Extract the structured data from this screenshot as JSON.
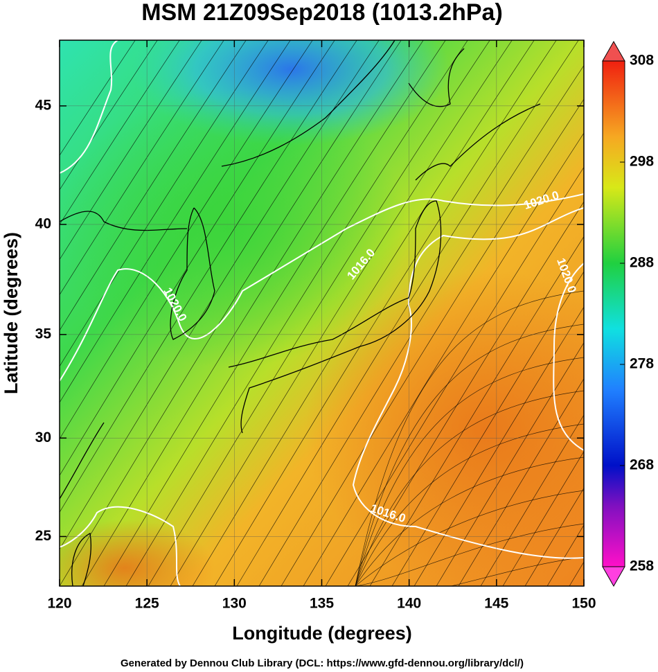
{
  "chart_data": {
    "type": "map",
    "title": "MSM 21Z09Sep2018 (1013.2hPa)",
    "xlabel": "Longitude (degrees)",
    "ylabel": "Latitude  (degrees)",
    "projection": "mercator",
    "xlim": [
      120,
      150
    ],
    "xticks": [
      120,
      125,
      130,
      135,
      140,
      145,
      150
    ],
    "ylim": [
      22.4,
      47.6
    ],
    "yticks": [
      25,
      30,
      35,
      40,
      45
    ],
    "grid": true,
    "colorbar": {
      "lim": [
        258,
        308
      ],
      "ticks": [
        258,
        268,
        278,
        288,
        298,
        308
      ]
    },
    "contour_labels": [
      "1020.0",
      "1016.0",
      "1020.0",
      "1020.0",
      "1016.0"
    ],
    "footer": "Generated by Dennou Club Library (DCL: https://www.gfd-dennou.org/library/dcl/)"
  }
}
